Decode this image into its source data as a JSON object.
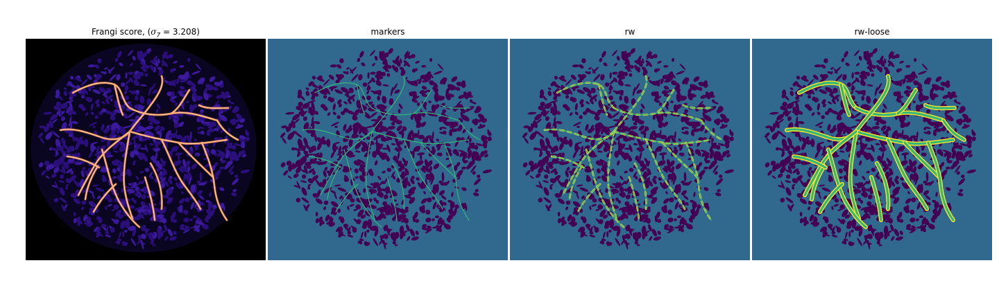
{
  "figure": {
    "panels": [
      {
        "title_prefix": "Frangi score, (",
        "title_math": "σ",
        "title_sub": "7",
        "title_suffix": " = 3.208)",
        "background": "#000000",
        "tissue": "#2a0f7a",
        "vessel": "#ff8f58",
        "vessel_core": "#ffd9a0",
        "kind": "frangi"
      },
      {
        "title": "markers",
        "background": "#31688e",
        "tissue": "#440154",
        "vessel": "#35b779",
        "kind": "markers"
      },
      {
        "title": "rw",
        "background": "#31688e",
        "tissue": "#440154",
        "vessel": "#35b779",
        "vessel_edge": "#fde725",
        "kind": "rw"
      },
      {
        "title": "rw-loose",
        "background": "#31688e",
        "tissue": "#440154",
        "vessel": "#35b779",
        "vessel_edge": "#fde725",
        "kind": "rwloose"
      }
    ]
  }
}
